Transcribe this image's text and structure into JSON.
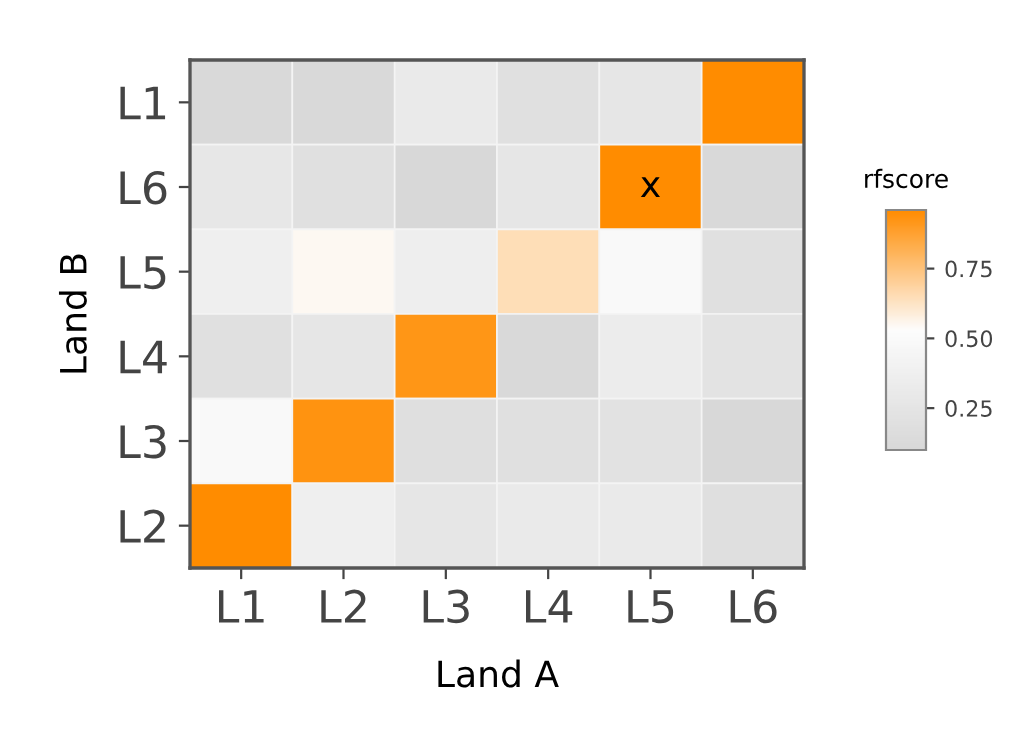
{
  "chart_data": {
    "type": "heatmap",
    "xlabel": "Land A",
    "ylabel": "Land B",
    "clabel": "rfscore",
    "categories": [
      "L1",
      "L2",
      "L3",
      "L4",
      "L5",
      "L6"
    ],
    "y_categories": [
      "L1",
      "L6",
      "L5",
      "L4",
      "L3",
      "L2"
    ],
    "cells": [
      [
        0.11,
        0.11,
        0.31,
        0.19,
        0.26,
        0.96
      ],
      [
        0.28,
        0.19,
        0.1,
        0.26,
        0.96,
        0.11
      ],
      [
        0.37,
        0.55,
        0.36,
        0.65,
        0.48,
        0.19
      ],
      [
        0.19,
        0.26,
        0.92,
        0.11,
        0.33,
        0.23
      ],
      [
        0.48,
        0.93,
        0.18,
        0.19,
        0.22,
        0.1
      ],
      [
        0.96,
        0.37,
        0.26,
        0.31,
        0.31,
        0.18
      ]
    ],
    "cell_labels": [
      [
        null,
        null,
        null,
        null,
        null,
        null
      ],
      [
        null,
        null,
        null,
        null,
        "x",
        null
      ],
      [
        null,
        null,
        null,
        null,
        null,
        null
      ],
      [
        null,
        null,
        null,
        null,
        null,
        null
      ],
      [
        null,
        null,
        null,
        null,
        null,
        null
      ],
      [
        null,
        null,
        null,
        null,
        null,
        null
      ]
    ],
    "clim": [
      0.1,
      0.96
    ],
    "cticks": [
      {
        "value": 0.25,
        "label": "0.25"
      },
      {
        "value": 0.5,
        "label": "0.50"
      },
      {
        "value": 0.75,
        "label": "0.75"
      }
    ],
    "colors": [
      "#d8d8d8",
      "#fdfdfd",
      "#ff8c00"
    ]
  }
}
